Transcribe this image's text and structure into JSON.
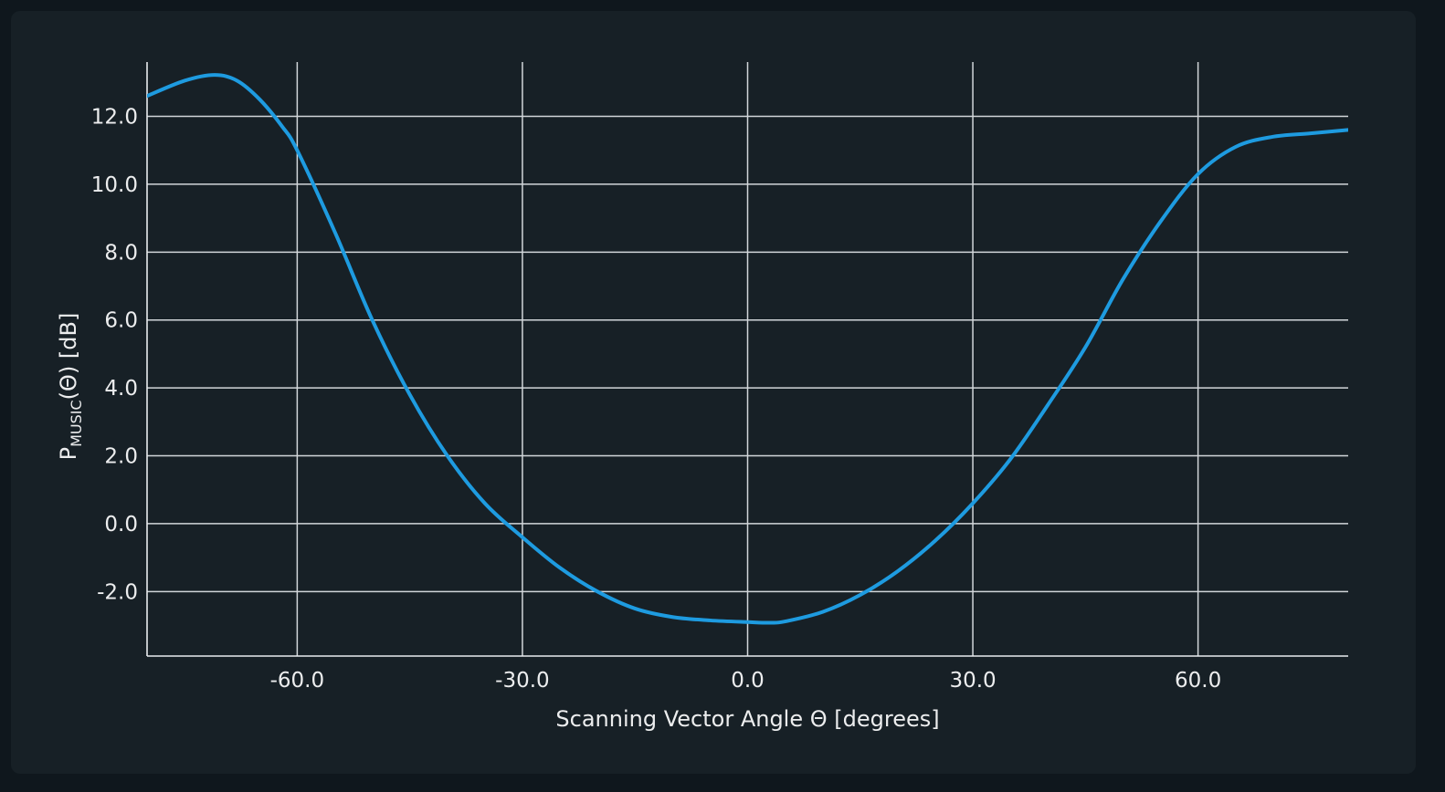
{
  "chart_data": {
    "type": "line",
    "title": "",
    "xlabel": "Scanning Vector Angle Θ [degrees]",
    "ylabel": {
      "main": "P",
      "subscript": "MUSIC",
      "rest": "(Θ)  [dB]"
    },
    "xlim": [
      -80,
      80
    ],
    "ylim": [
      -3.9,
      13.6
    ],
    "xticks": [
      -60,
      -30,
      0,
      30,
      60
    ],
    "xtick_labels": [
      "-60.0",
      "-30.0",
      "0.0",
      "30.0",
      "60.0"
    ],
    "yticks": [
      -2,
      0,
      2,
      4,
      6,
      8,
      10,
      12
    ],
    "ytick_labels": [
      "-2.0",
      "0.0",
      "2.0",
      "4.0",
      "6.0",
      "8.0",
      "10.0",
      "12.0"
    ],
    "grid": true,
    "series": [
      {
        "color": "#1e9be0",
        "x": [
          -80,
          -75,
          -71,
          -68,
          -65,
          -62,
          -60,
          -55,
          -50,
          -45,
          -40,
          -35,
          -30,
          -25,
          -20,
          -15,
          -10,
          -5,
          0,
          3,
          5,
          10,
          15,
          20,
          25,
          30,
          35,
          40,
          45,
          50,
          55,
          60,
          65,
          70,
          75,
          80
        ],
        "y": [
          12.6,
          13.05,
          13.22,
          13.05,
          12.5,
          11.7,
          11.0,
          8.6,
          6.0,
          3.8,
          2.0,
          0.6,
          -0.4,
          -1.3,
          -2.0,
          -2.5,
          -2.75,
          -2.85,
          -2.9,
          -2.92,
          -2.88,
          -2.6,
          -2.1,
          -1.4,
          -0.5,
          0.6,
          1.9,
          3.5,
          5.2,
          7.2,
          8.9,
          10.3,
          11.1,
          11.4,
          11.5,
          11.6
        ]
      }
    ]
  }
}
